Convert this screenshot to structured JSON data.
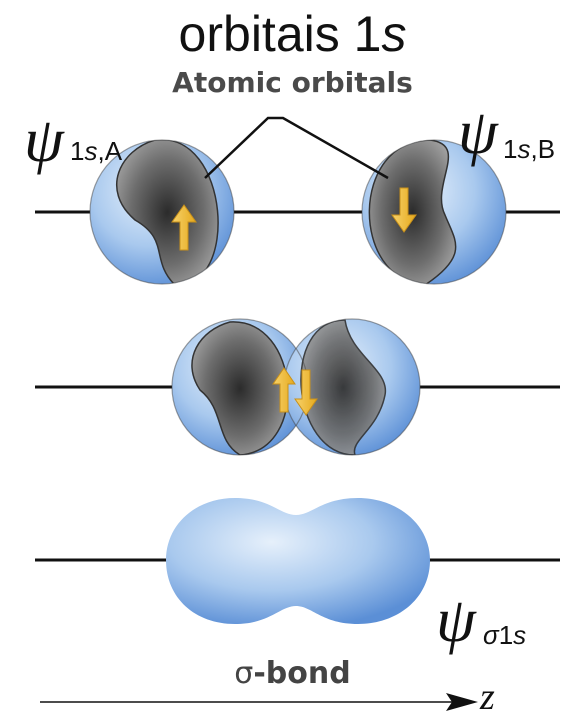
{
  "title": {
    "main": "orbitais 1",
    "italic": "s"
  },
  "subtitle": "Atomic orbitals",
  "labels": {
    "psi": "ψ",
    "sub_a": {
      "italic": "s",
      "prefix": "1",
      "suffix": ",A"
    },
    "sub_b": {
      "italic": "s",
      "prefix": "1",
      "suffix": ",B"
    },
    "sub_sigma": {
      "greek": "σ",
      "middle": "1",
      "italic": "s"
    }
  },
  "bond_label": {
    "sigma": "σ",
    "text": "-bond"
  },
  "axis_label": "z",
  "spins": {
    "a": "up",
    "b": "down",
    "overlap": "up-down pair"
  },
  "colors": {
    "orbital_blue": "#a9c9ee",
    "orbital_blue_dark": "#5b8fd6",
    "gray_core": "#3a3a3a",
    "arrow_yellow": "#f5c33b"
  },
  "icons": [
    "spin-up-arrow-icon",
    "spin-down-arrow-icon",
    "axis-arrow-icon"
  ]
}
